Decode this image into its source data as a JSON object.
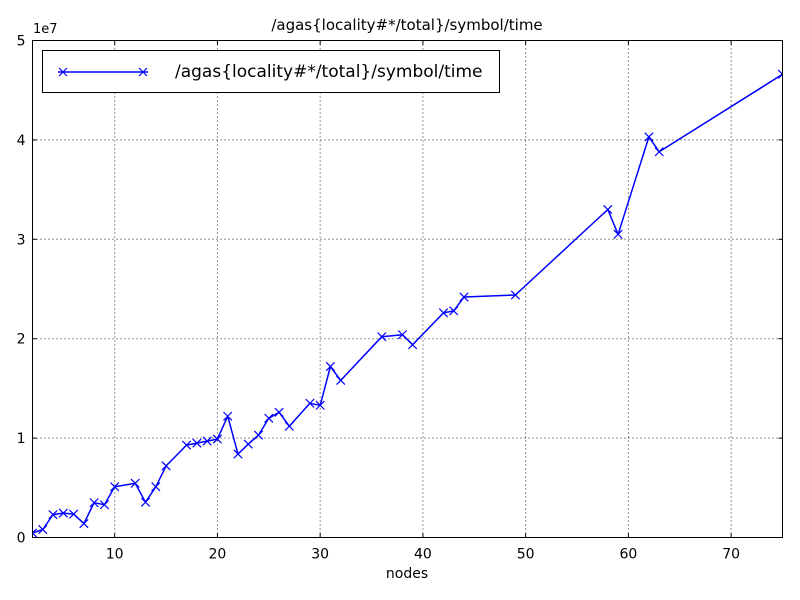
{
  "title": "/agas{locality#*/total}/symbol/time",
  "legend": {
    "label": "/agas{locality#*/total}/symbol/time"
  },
  "axes": {
    "xlabel": "nodes",
    "x_tick_values": [
      10,
      20,
      30,
      40,
      50,
      60,
      70
    ],
    "x_tick_labels": [
      "10",
      "20",
      "30",
      "40",
      "50",
      "60",
      "70"
    ],
    "y_tick_values": [
      0,
      10000000,
      20000000,
      30000000,
      40000000,
      50000000
    ],
    "y_tick_labels": [
      "0",
      "1",
      "2",
      "3",
      "4",
      "5"
    ],
    "y_offset_label": "1e7"
  },
  "colors": {
    "line": "#0000ff",
    "grid": "#000000",
    "frame": "#000000",
    "background": "#ffffff",
    "text": "#000000"
  },
  "chart_data": {
    "type": "line",
    "title": "/agas{locality#*/total}/symbol/time",
    "xlabel": "nodes",
    "ylabel": "",
    "legend": [
      "/agas{locality#*/total}/symbol/time"
    ],
    "legend_position": "upper left",
    "grid": true,
    "grid_style": "dotted",
    "marker": "x",
    "line_color": "#0000ff",
    "xlim": [
      2,
      75
    ],
    "ylim": [
      0,
      50000000
    ],
    "x": [
      2,
      3,
      4,
      5,
      6,
      7,
      8,
      9,
      10,
      12,
      13,
      14,
      15,
      17,
      18,
      19,
      20,
      21,
      22,
      23,
      24,
      25,
      26,
      27,
      29,
      30,
      31,
      32,
      36,
      38,
      39,
      42,
      43,
      44,
      49,
      58,
      59,
      62,
      63,
      75
    ],
    "y": [
      450000,
      800000,
      2300000,
      2450000,
      2350000,
      1400000,
      3500000,
      3300000,
      5100000,
      5450000,
      3550000,
      5100000,
      7200000,
      9300000,
      9500000,
      9700000,
      9900000,
      12200000,
      8400000,
      9400000,
      10300000,
      12000000,
      12600000,
      11200000,
      13500000,
      13300000,
      17200000,
      15800000,
      20200000,
      20400000,
      19400000,
      22600000,
      22800000,
      24200000,
      24400000,
      33000000,
      30500000,
      40300000,
      38800000,
      46600000
    ]
  }
}
